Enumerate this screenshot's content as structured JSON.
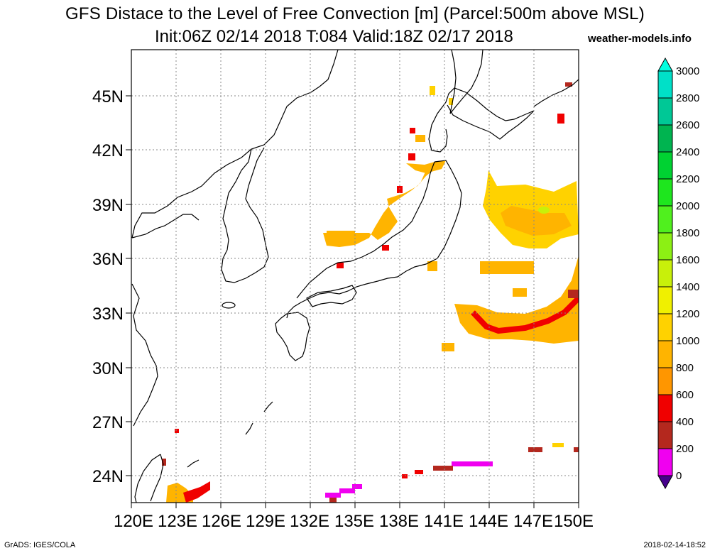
{
  "title": {
    "line1": "GFS Distace to the Level of Free Convection [m] (Parcel:500m above MSL)",
    "line2": "Init:06Z 02/14 2018 T:084 Valid:18Z 02/17 2018",
    "site": "weather-models.info"
  },
  "footer": {
    "left": "GrADS: IGES/COLA",
    "right": "2018-02-14-18:52"
  },
  "map": {
    "lon_range": [
      120,
      150
    ],
    "lat_range": [
      22.5,
      47.5
    ],
    "x_ticks": [
      "120E",
      "123E",
      "126E",
      "129E",
      "132E",
      "135E",
      "138E",
      "141E",
      "144E",
      "147E",
      "150E"
    ],
    "y_ticks": [
      "24N",
      "27N",
      "30N",
      "33N",
      "36N",
      "39N",
      "42N",
      "45N"
    ],
    "grid": true
  },
  "colorbar": {
    "labels": [
      "3000",
      "2800",
      "2600",
      "2400",
      "2200",
      "2000",
      "1800",
      "1600",
      "1400",
      "1200",
      "1000",
      "800",
      "600",
      "400",
      "200",
      "0"
    ],
    "colors": [
      "#00e0c8",
      "#00c896",
      "#00b450",
      "#00d232",
      "#1ee61e",
      "#50f01e",
      "#8cf014",
      "#c8f00a",
      "#f0f000",
      "#ffd200",
      "#ffb400",
      "#ff9600",
      "#f00000",
      "#b4281e",
      "#f000f0",
      "#3c0096"
    ],
    "over_color": "#00ffe0",
    "under_color": "#46008c"
  }
}
